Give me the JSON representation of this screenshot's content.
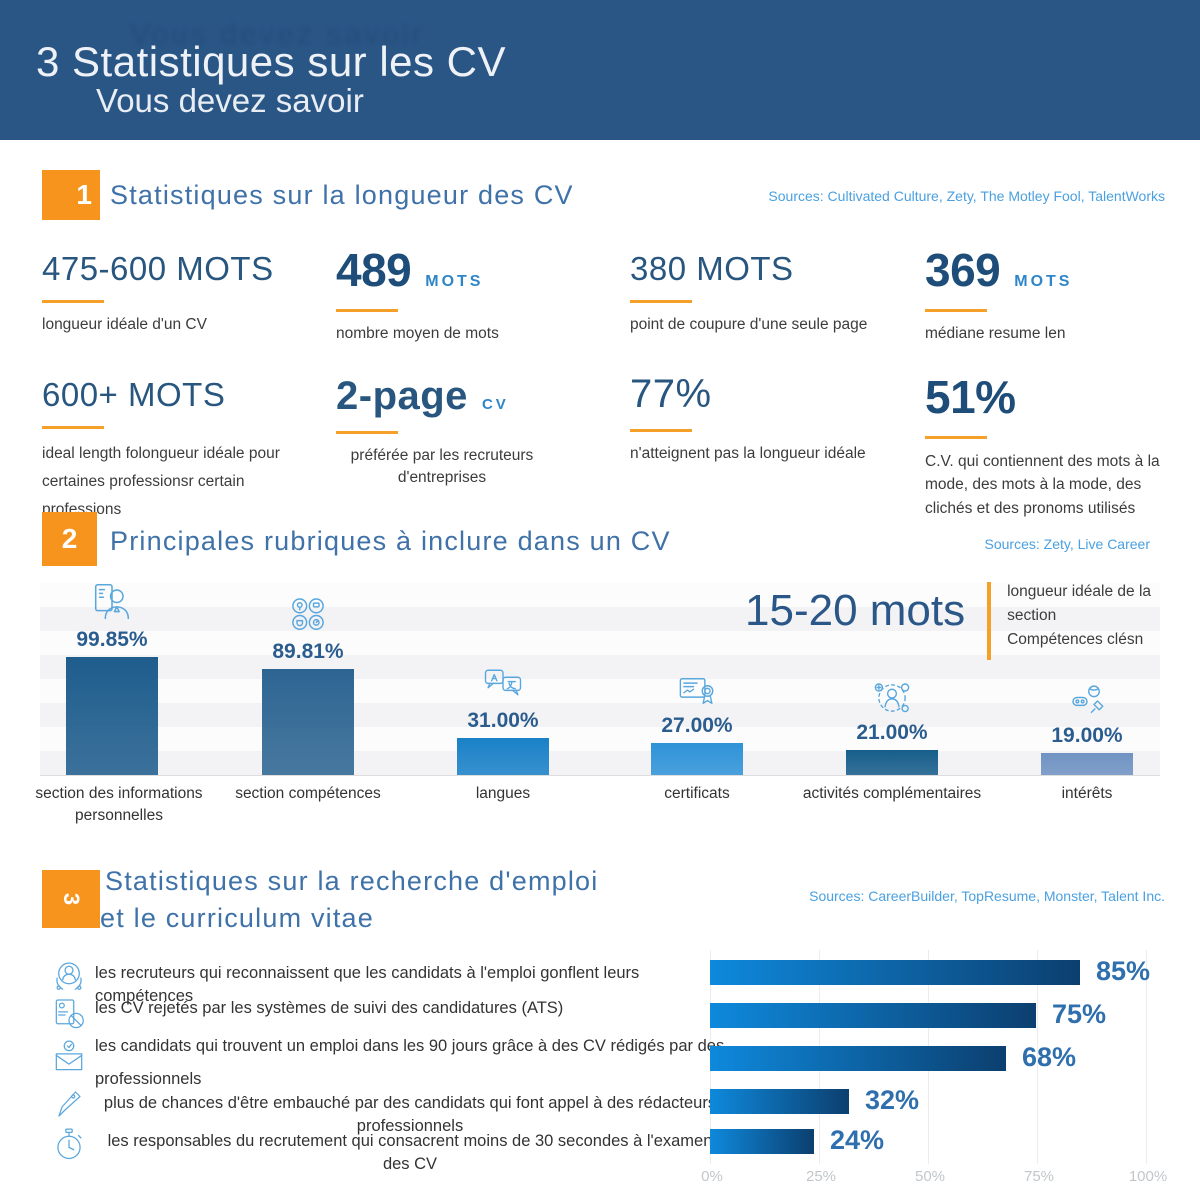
{
  "header": {
    "title": "3 Statistiques sur les CV",
    "subtitle": "Vous devez savoir"
  },
  "palette": {
    "header_bg": "#2a5686",
    "accent_orange": "#f7941e",
    "underline_orange": "#f5a028",
    "section_title_blue": "#3f72a8",
    "value_navy": "#1d4d78",
    "unit_blue": "#2e86c8",
    "sources_blue": "#4aa0e0",
    "body_text": "#3c3c3c",
    "axis_gray": "#c2c6ca",
    "icon_blue": "#5aa7dd"
  },
  "section1": {
    "badge": "1",
    "title": "Statistiques sur la longueur des CV",
    "sources": "Sources: Cultivated Culture, Zety, The Motley Fool, TalentWorks",
    "stats": [
      {
        "value": "475-600 MOTS",
        "unit": "",
        "desc": "longueur idéale d'un CV"
      },
      {
        "value": "489",
        "unit": "MOTS",
        "desc": "nombre moyen de mots"
      },
      {
        "value": "380 MOTS",
        "unit": "",
        "desc": "point de coupure d'une seule page"
      },
      {
        "value": "369",
        "unit": "MOTS",
        "desc": "médiane resume len"
      },
      {
        "value": "600+ MOTS",
        "unit": "",
        "desc": "ideal length folongueur idéale pour certaines professionsr certain professions"
      },
      {
        "value": "2-page",
        "unit": "CV",
        "desc": "préférée par les recruteurs d'entreprises"
      },
      {
        "value": "77%",
        "unit": "",
        "desc": "n'atteignent pas la longueur idéale"
      },
      {
        "value": "51%",
        "unit": "",
        "desc": "C.V. qui contiennent des mots à la mode, des mots à la mode, des clichés et des pronoms utilisés"
      }
    ]
  },
  "section2": {
    "badge": "2",
    "title": "Principales rubriques à inclure dans un CV",
    "sources": "Sources: Zety, Live Career",
    "highlight_value": "15-20 mots",
    "highlight_desc": "longueur idéale de la\nsection\nCompétences clésn"
  },
  "section3": {
    "badge": "3",
    "title_line1": "Statistiques sur la recherche d'emploi",
    "title_line2": "et le curriculum vitae",
    "sources": "Sources: CareerBuilder, TopResume, Monster, Talent Inc."
  },
  "chart_data": [
    {
      "type": "bar",
      "title": "Principales rubriques à inclure dans un CV",
      "categories": [
        "section des informations personnelles",
        "section compétences",
        "langues",
        "certificats",
        "activités complémentaires",
        "intérêts"
      ],
      "values": [
        99.85,
        89.81,
        31.0,
        27.0,
        21.0,
        19.0
      ],
      "labels": [
        "99.85%",
        "89.81%",
        "31.00%",
        "27.00%",
        "21.00%",
        "19.00%"
      ],
      "icons": [
        "personal-info-icon",
        "skills-icon",
        "languages-icon",
        "certificates-icon",
        "activities-icon",
        "interests-icon"
      ],
      "bar_colors": [
        "#1f5d8d",
        "#2d6592",
        "#1a81c8",
        "#2f93d8",
        "#175e8b",
        "#7093c3"
      ],
      "ylim": [
        0,
        100
      ],
      "grid": "horizontal-bands",
      "legend": "none"
    },
    {
      "type": "bar",
      "orientation": "horizontal",
      "title": "Statistiques sur la recherche d'emploi et le curriculum vitae",
      "categories": [
        "les recruteurs qui reconnaissent que les candidats à l'emploi gonflent leurs compétences",
        "les CV rejetés par les systèmes de suivi des candidatures (ATS)",
        "les candidats qui trouvent un emploi dans les 90 jours grâce à des CV rédigés par des professionnels",
        "plus de chances d'être embauché par des candidats qui font appel à des rédacteurs professionnels",
        "les responsables du recrutement qui consacrent moins de 30 secondes à l'examen des CV"
      ],
      "values": [
        85,
        75,
        68,
        32,
        24
      ],
      "labels": [
        "85%",
        "75%",
        "68%",
        "32%",
        "24%"
      ],
      "icons": [
        "recruiter-icon",
        "rejected-cv-icon",
        "envelope-badge-icon",
        "pen-icon",
        "stopwatch-icon"
      ],
      "bar_gradient": [
        "#0e89dc",
        "#0c3f6f"
      ],
      "x_ticks": [
        "0%",
        "25%",
        "50%",
        "75%",
        "100%"
      ],
      "xlim": [
        0,
        100
      ],
      "grid": "vertical",
      "legend": "none"
    }
  ]
}
